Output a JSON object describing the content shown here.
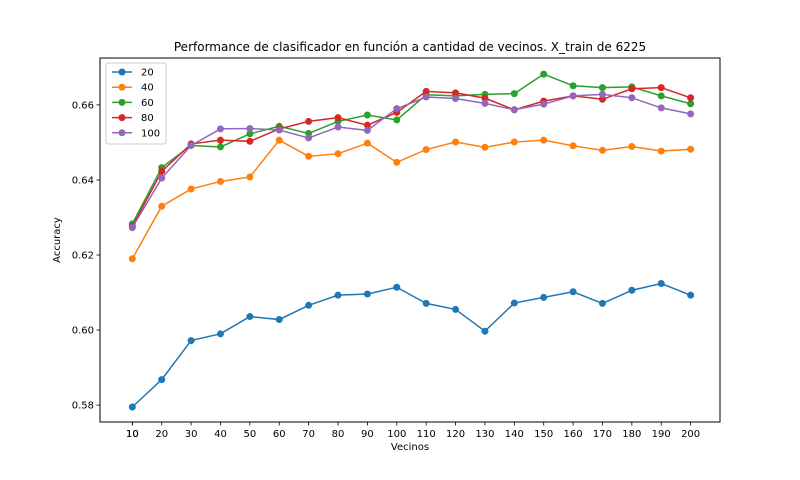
{
  "chart_data": {
    "type": "line",
    "title": "Performance de clasificador en función a cantidad de vecinos. X_train de 6225",
    "xlabel": "Vecinos",
    "ylabel": "Accuracy",
    "x": [
      10,
      20,
      30,
      40,
      50,
      60,
      70,
      80,
      90,
      100,
      110,
      120,
      130,
      140,
      150,
      160,
      170,
      180,
      190,
      200
    ],
    "xticks": [
      "10",
      "10",
      "20",
      "30",
      "40",
      "50",
      "60",
      "70",
      "80",
      "90",
      "100",
      "110",
      "120",
      "130",
      "140",
      "150",
      "160",
      "170",
      "180",
      "190",
      "200"
    ],
    "xlim": [
      -1,
      210
    ],
    "ylim": [
      0.5755,
      0.6725
    ],
    "yticks": [
      "0.58",
      "0.60",
      "0.62",
      "0.64",
      "0.66"
    ],
    "grid": false,
    "legend_position": "top-left",
    "series": [
      {
        "name": "20",
        "color": "#1f77b4",
        "values": [
          0.5795,
          0.5868,
          0.5972,
          0.599,
          0.6036,
          0.6028,
          0.6066,
          0.6093,
          0.6096,
          0.6114,
          0.6071,
          0.6055,
          0.5997,
          0.6072,
          0.6087,
          0.6102,
          0.6071,
          0.6106,
          0.6124,
          0.6093
        ]
      },
      {
        "name": "40",
        "color": "#ff7f0e",
        "values": [
          0.619,
          0.633,
          0.6376,
          0.6396,
          0.6408,
          0.6506,
          0.6463,
          0.647,
          0.6498,
          0.6447,
          0.6481,
          0.6501,
          0.6487,
          0.6501,
          0.6506,
          0.6491,
          0.6479,
          0.6489,
          0.6477,
          0.6482
        ]
      },
      {
        "name": "60",
        "color": "#2ca02c",
        "values": [
          0.6283,
          0.6433,
          0.6492,
          0.6488,
          0.6523,
          0.6543,
          0.6524,
          0.6556,
          0.6573,
          0.656,
          0.6627,
          0.6624,
          0.6628,
          0.663,
          0.6682,
          0.6651,
          0.6646,
          0.6648,
          0.6624,
          0.6603
        ]
      },
      {
        "name": "80",
        "color": "#d62728",
        "values": [
          0.6276,
          0.6423,
          0.6496,
          0.6506,
          0.6503,
          0.6536,
          0.6556,
          0.6566,
          0.6546,
          0.658,
          0.6636,
          0.6632,
          0.6618,
          0.6587,
          0.661,
          0.6624,
          0.6615,
          0.6643,
          0.6646,
          0.6619
        ]
      },
      {
        "name": "100",
        "color": "#9467bd",
        "values": [
          0.6273,
          0.6405,
          0.6492,
          0.6536,
          0.6537,
          0.6533,
          0.6512,
          0.6541,
          0.6532,
          0.659,
          0.6621,
          0.6617,
          0.6604,
          0.6587,
          0.6602,
          0.6624,
          0.6628,
          0.6619,
          0.6592,
          0.6576
        ]
      }
    ]
  }
}
